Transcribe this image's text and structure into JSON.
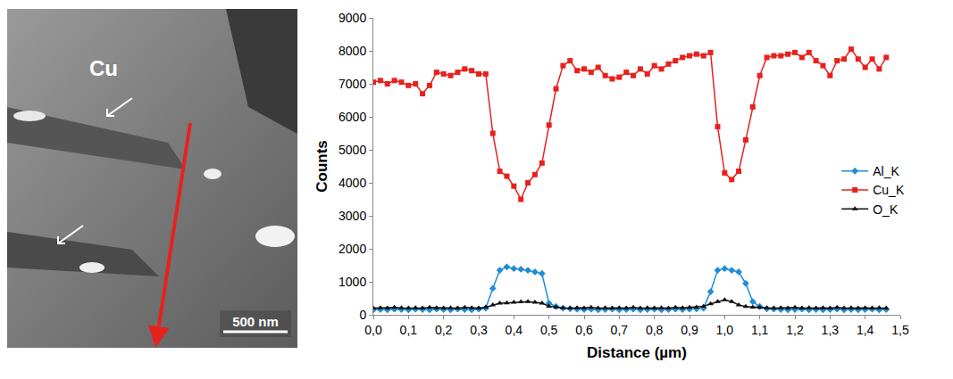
{
  "image_panel": {
    "label": "Cu",
    "scale_bar": "500 nm"
  },
  "chart_data": {
    "type": "line",
    "x_label": "Distance (µm)",
    "y_label": "Counts",
    "x": [
      0.0,
      0.02,
      0.04,
      0.06,
      0.08,
      0.1,
      0.12,
      0.14,
      0.16,
      0.18,
      0.2,
      0.22,
      0.24,
      0.26,
      0.28,
      0.3,
      0.32,
      0.34,
      0.36,
      0.38,
      0.4,
      0.42,
      0.44,
      0.46,
      0.48,
      0.5,
      0.52,
      0.54,
      0.56,
      0.58,
      0.6,
      0.62,
      0.64,
      0.66,
      0.68,
      0.7,
      0.72,
      0.74,
      0.76,
      0.78,
      0.8,
      0.82,
      0.84,
      0.86,
      0.88,
      0.9,
      0.92,
      0.94,
      0.96,
      0.98,
      1.0,
      1.02,
      1.04,
      1.06,
      1.08,
      1.1,
      1.12,
      1.14,
      1.16,
      1.18,
      1.2,
      1.22,
      1.24,
      1.26,
      1.28,
      1.3,
      1.32,
      1.34,
      1.36,
      1.38,
      1.4,
      1.42,
      1.44,
      1.46
    ],
    "series": [
      {
        "name": "Al_K",
        "color": "#1f8dd6",
        "marker": "diamond",
        "values": [
          150,
          160,
          150,
          170,
          160,
          150,
          170,
          160,
          150,
          170,
          160,
          150,
          170,
          160,
          150,
          170,
          200,
          800,
          1350,
          1450,
          1400,
          1380,
          1350,
          1300,
          1250,
          350,
          250,
          200,
          180,
          170,
          160,
          170,
          150,
          160,
          170,
          150,
          160,
          170,
          150,
          160,
          170,
          150,
          160,
          170,
          160,
          170,
          180,
          200,
          700,
          1350,
          1400,
          1350,
          1300,
          950,
          400,
          250,
          180,
          170,
          160,
          150,
          160,
          170,
          150,
          160,
          150,
          160,
          170,
          150,
          160,
          150,
          160,
          170,
          150,
          160
        ]
      },
      {
        "name": "Cu_K",
        "color": "#e8211c",
        "marker": "square",
        "values": [
          7050,
          7100,
          7000,
          7100,
          7050,
          6950,
          7000,
          6700,
          6950,
          7350,
          7300,
          7250,
          7350,
          7450,
          7400,
          7300,
          7300,
          5500,
          4350,
          4200,
          3900,
          3500,
          4000,
          4250,
          4600,
          5750,
          6850,
          7550,
          7700,
          7400,
          7450,
          7350,
          7500,
          7250,
          7150,
          7200,
          7350,
          7250,
          7450,
          7300,
          7550,
          7450,
          7600,
          7700,
          7800,
          7850,
          7900,
          7850,
          7950,
          5700,
          4300,
          4100,
          4350,
          5300,
          6300,
          7250,
          7800,
          7850,
          7850,
          7900,
          7950,
          7800,
          7950,
          7700,
          7550,
          7250,
          7700,
          7750,
          8050,
          7750,
          7500,
          7750,
          7450,
          7800
        ]
      },
      {
        "name": "O_K",
        "color": "#111111",
        "marker": "triangle-up",
        "values": [
          200,
          210,
          200,
          220,
          210,
          200,
          210,
          200,
          220,
          210,
          200,
          210,
          200,
          220,
          210,
          200,
          230,
          300,
          350,
          360,
          380,
          390,
          400,
          380,
          350,
          260,
          230,
          210,
          200,
          210,
          200,
          220,
          200,
          210,
          200,
          210,
          200,
          220,
          200,
          210,
          200,
          210,
          200,
          220,
          210,
          220,
          230,
          260,
          330,
          400,
          450,
          400,
          300,
          250,
          230,
          220,
          210,
          200,
          210,
          200,
          220,
          200,
          210,
          200,
          210,
          200,
          220,
          200,
          210,
          200,
          210,
          200,
          210,
          200
        ]
      }
    ],
    "xlim": [
      0,
      1.5
    ],
    "xticks": [
      {
        "value": 0,
        "label": "0,0"
      },
      {
        "value": 0.1,
        "label": "0,1"
      },
      {
        "value": 0.2,
        "label": "0,2"
      },
      {
        "value": 0.3,
        "label": "0,3"
      },
      {
        "value": 0.4,
        "label": "0,4"
      },
      {
        "value": 0.5,
        "label": "0,5"
      },
      {
        "value": 0.6,
        "label": "0,6"
      },
      {
        "value": 0.7,
        "label": "0,7"
      },
      {
        "value": 0.8,
        "label": "0,8"
      },
      {
        "value": 0.9,
        "label": "0,9"
      },
      {
        "value": 1.0,
        "label": "1,0"
      },
      {
        "value": 1.1,
        "label": "1,1"
      },
      {
        "value": 1.2,
        "label": "1,2"
      },
      {
        "value": 1.3,
        "label": "1,3"
      },
      {
        "value": 1.4,
        "label": "1,4"
      },
      {
        "value": 1.5,
        "label": "1,5"
      }
    ],
    "ylim": [
      0,
      9000
    ],
    "yticks": [
      0,
      1000,
      2000,
      3000,
      4000,
      5000,
      6000,
      7000,
      8000,
      9000
    ],
    "grid": false,
    "legend": "right"
  }
}
